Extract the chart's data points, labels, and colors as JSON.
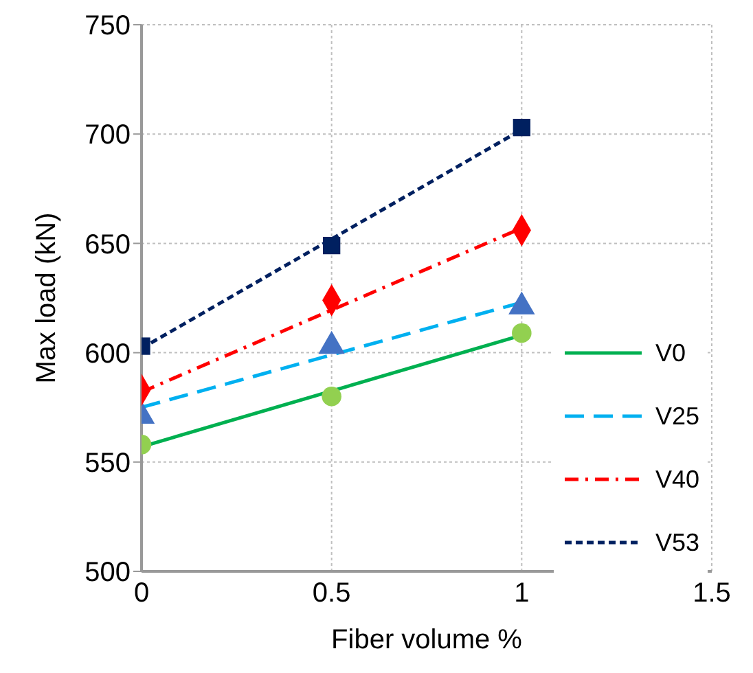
{
  "chart_data": {
    "type": "scatter",
    "xlabel": "Fiber volume %",
    "ylabel": "Max load (kN)",
    "xlim": [
      0,
      1.5
    ],
    "xticks": [
      0,
      0.5,
      1,
      1.5
    ],
    "ylim": [
      500,
      750
    ],
    "yticks": [
      500,
      550,
      600,
      650,
      700,
      750
    ],
    "grid": true,
    "legend": "right",
    "series": [
      {
        "marker": "circle",
        "color": "#92d050",
        "x": [
          0,
          0.5,
          1
        ],
        "values": [
          558,
          580,
          609
        ]
      },
      {
        "marker": "triangle",
        "color": "#4472c4",
        "x": [
          0,
          0.5,
          1
        ],
        "values": [
          571,
          603,
          621
        ]
      },
      {
        "marker": "diamond",
        "color": "#ff0000",
        "x": [
          0,
          0.5,
          1
        ],
        "values": [
          583,
          624,
          656
        ]
      },
      {
        "marker": "square",
        "color": "#002060",
        "x": [
          0,
          0.5,
          1
        ],
        "values": [
          603,
          649,
          703
        ]
      },
      {
        "type": "line",
        "name": "V0",
        "color": "#00b050",
        "line_style": "solid",
        "marker": "none",
        "x": [
          0,
          1
        ],
        "values": [
          557,
          608
        ]
      },
      {
        "type": "line",
        "name": "V25",
        "color": "#00b0f0",
        "line_style": "dashed",
        "marker": "none",
        "x": [
          0,
          1
        ],
        "values": [
          575,
          623
        ]
      },
      {
        "type": "line",
        "name": "V40",
        "color": "#ff0000",
        "line_style": "dashdot",
        "marker": "none",
        "x": [
          0,
          1
        ],
        "values": [
          582,
          657
        ]
      },
      {
        "type": "line",
        "name": "V53",
        "color": "#002060",
        "line_style": "dotted",
        "marker": "none",
        "x": [
          0,
          1
        ],
        "values": [
          602,
          702
        ]
      }
    ]
  }
}
